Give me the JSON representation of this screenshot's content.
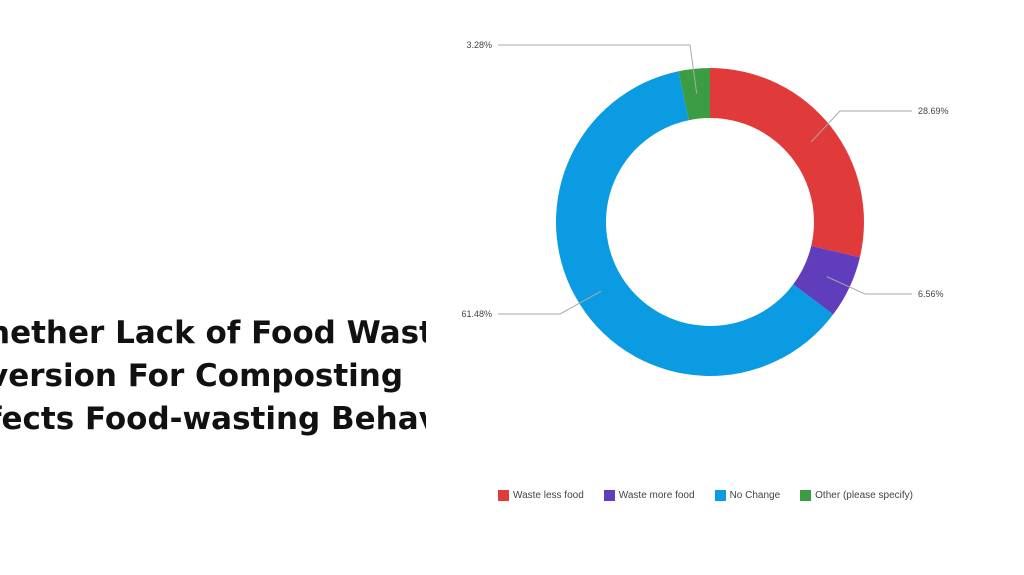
{
  "slide": {
    "title_lines": [
      "hether Lack of Food Waste",
      "version For Composting",
      "fects Food-wasting Behav"
    ]
  },
  "chart_data": {
    "type": "pie",
    "donut": true,
    "title": "",
    "series": [
      {
        "name": "Waste less food",
        "value": 28.69,
        "label": "28.69%",
        "color": "#e03a3a"
      },
      {
        "name": "Waste more food",
        "value": 6.56,
        "label": "6.56%",
        "color": "#5f3dbb"
      },
      {
        "name": "No Change",
        "value": 61.48,
        "label": "61.48%",
        "color": "#0a9be3"
      },
      {
        "name": "Other (please specify)",
        "value": 3.28,
        "label": "3.28%",
        "color": "#3c9c43"
      }
    ],
    "legend_position": "bottom"
  }
}
